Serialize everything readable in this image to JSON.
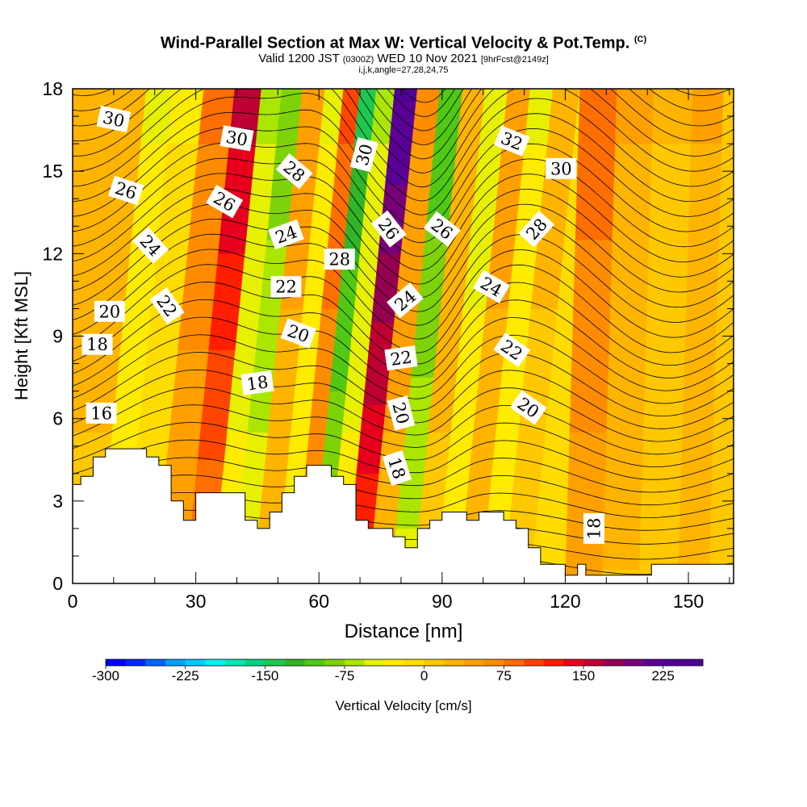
{
  "header": {
    "title": "Wind-Parallel Section at Max W: Vertical Velocity & Pot.Temp.",
    "title_mark": "(C)",
    "valid_prefix": "Valid 1200 JST",
    "valid_utc": "(0300Z)",
    "valid_date": "WED 10 Nov 2021",
    "forecast_info": "[9hrFcst@2149z]",
    "indices": "i,j,k,angle=27,28,24,75"
  },
  "chart_data": {
    "type": "heatmap",
    "xlabel": "Distance [nm]",
    "ylabel": "Height [Kft MSL]",
    "xlim": [
      0,
      161
    ],
    "ylim": [
      0,
      18
    ],
    "xticks": [
      "0",
      "30",
      "60",
      "90",
      "120",
      "150"
    ],
    "yticks": [
      "0",
      "3",
      "6",
      "9",
      "12",
      "15",
      "18"
    ],
    "colorbar": {
      "label": "Vertical Velocity [cm/s]",
      "min": -300,
      "max": 262.5,
      "step": 18.75,
      "tick_labels": [
        "-300",
        "-225",
        "-150",
        "-75",
        "0",
        "75",
        "150",
        "225"
      ],
      "colors": [
        "#0000ff",
        "#0028ff",
        "#0064ff",
        "#00a0ff",
        "#00c8ff",
        "#00f0f0",
        "#00e6b4",
        "#00d282",
        "#1ec850",
        "#32b428",
        "#50c814",
        "#7ed20a",
        "#aae600",
        "#e6f000",
        "#ffeb00",
        "#ffdc00",
        "#ffc800",
        "#ffb400",
        "#ffa000",
        "#ff8c00",
        "#ff6e00",
        "#ff4600",
        "#ff1e00",
        "#e6001e",
        "#be0032",
        "#960050",
        "#780078",
        "#5a0096",
        "#500096",
        "#500096"
      ]
    },
    "velocity_bands": [
      {
        "x": 3,
        "w": 30
      },
      {
        "x": 9,
        "w": -40
      },
      {
        "x": 16,
        "w": -20
      },
      {
        "x": 24,
        "w": 80
      },
      {
        "x": 31,
        "w": 160
      },
      {
        "x": 37,
        "w": -60
      },
      {
        "x": 41,
        "w": -90
      },
      {
        "x": 47,
        "w": 50
      },
      {
        "x": 52,
        "w": -40
      },
      {
        "x": 56,
        "w": 100
      },
      {
        "x": 60,
        "w": -140
      },
      {
        "x": 64,
        "w": -60
      },
      {
        "x": 69,
        "w": 230
      },
      {
        "x": 75,
        "w": 60
      },
      {
        "x": 80,
        "w": -110
      },
      {
        "x": 86,
        "w": 30
      },
      {
        "x": 91,
        "w": -50
      },
      {
        "x": 97,
        "w": 50
      },
      {
        "x": 102,
        "w": -40
      },
      {
        "x": 108,
        "w": 25
      },
      {
        "x": 115,
        "w": -20
      },
      {
        "x": 125,
        "w": 90
      },
      {
        "x": 133,
        "w": 40
      },
      {
        "x": 143,
        "w": 20
      },
      {
        "x": 152,
        "w": 40
      },
      {
        "x": 158,
        "w": 10
      }
    ],
    "terrain": [
      [
        0,
        3.6
      ],
      [
        2,
        3.6
      ],
      [
        2,
        3.9
      ],
      [
        5,
        3.9
      ],
      [
        5,
        4.6
      ],
      [
        8,
        4.6
      ],
      [
        8,
        4.9
      ],
      [
        18,
        4.9
      ],
      [
        18,
        4.6
      ],
      [
        21,
        4.6
      ],
      [
        21,
        4.3
      ],
      [
        24,
        4.3
      ],
      [
        24,
        3.0
      ],
      [
        27,
        3.0
      ],
      [
        27,
        2.3
      ],
      [
        30,
        2.3
      ],
      [
        30,
        3.3
      ],
      [
        42,
        3.3
      ],
      [
        42,
        2.3
      ],
      [
        45,
        2.3
      ],
      [
        45,
        2.0
      ],
      [
        48,
        2.0
      ],
      [
        48,
        2.6
      ],
      [
        51,
        2.6
      ],
      [
        51,
        3.3
      ],
      [
        54,
        3.3
      ],
      [
        54,
        3.9
      ],
      [
        57,
        3.9
      ],
      [
        57,
        4.3
      ],
      [
        63,
        4.3
      ],
      [
        63,
        3.9
      ],
      [
        66,
        3.9
      ],
      [
        66,
        3.6
      ],
      [
        69,
        3.6
      ],
      [
        69,
        2.3
      ],
      [
        72,
        2.3
      ],
      [
        72,
        2.0
      ],
      [
        78,
        2.0
      ],
      [
        78,
        1.7
      ],
      [
        81,
        1.7
      ],
      [
        81,
        1.3
      ],
      [
        84,
        1.3
      ],
      [
        84,
        2.0
      ],
      [
        87,
        2.0
      ],
      [
        87,
        2.3
      ],
      [
        90,
        2.3
      ],
      [
        90,
        2.6
      ],
      [
        96,
        2.6
      ],
      [
        96,
        2.3
      ],
      [
        99,
        2.3
      ],
      [
        99,
        2.6
      ],
      [
        105,
        2.6
      ],
      [
        105,
        2.3
      ],
      [
        108,
        2.3
      ],
      [
        108,
        2.0
      ],
      [
        111,
        2.0
      ],
      [
        111,
        1.3
      ],
      [
        114,
        1.3
      ],
      [
        114,
        0.7
      ],
      [
        120,
        0.7
      ],
      [
        120,
        0.3
      ],
      [
        123,
        0.3
      ],
      [
        123,
        0.7
      ],
      [
        125,
        0.7
      ],
      [
        125,
        0.3
      ],
      [
        141,
        0.3
      ],
      [
        141,
        0.7
      ],
      [
        161,
        0.7
      ]
    ],
    "isentropes": [
      {
        "label": "16",
        "labels": [
          [
            7,
            6.2,
            0
          ]
        ]
      },
      {
        "label": "18",
        "labels": [
          [
            6,
            8.7,
            0
          ],
          [
            45,
            7.3,
            -8
          ],
          [
            79,
            4.2,
            72
          ],
          [
            127,
            2.0,
            -90
          ]
        ]
      },
      {
        "label": "20",
        "labels": [
          [
            9,
            9.9,
            0
          ],
          [
            55,
            9.1,
            20
          ],
          [
            80,
            6.2,
            75
          ],
          [
            111,
            6.4,
            35
          ]
        ]
      },
      {
        "label": "22",
        "labels": [
          [
            23,
            10.1,
            55
          ],
          [
            52,
            10.8,
            0
          ],
          [
            80,
            8.2,
            -8
          ],
          [
            107,
            8.5,
            35
          ]
        ]
      },
      {
        "label": "24",
        "labels": [
          [
            19,
            12.3,
            48
          ],
          [
            52,
            12.7,
            -20
          ],
          [
            81,
            10.3,
            -40
          ],
          [
            102,
            10.8,
            30
          ]
        ]
      },
      {
        "label": "26",
        "labels": [
          [
            13,
            14.3,
            18
          ],
          [
            37,
            13.9,
            30
          ],
          [
            77,
            12.9,
            52
          ],
          [
            90,
            12.9,
            38
          ]
        ]
      },
      {
        "label": "28",
        "labels": [
          [
            54,
            15.0,
            40
          ],
          [
            65,
            11.8,
            0
          ],
          [
            113,
            12.9,
            -48
          ]
        ]
      },
      {
        "label": "30",
        "labels": [
          [
            10,
            16.9,
            12
          ],
          [
            40,
            16.2,
            10
          ],
          [
            71,
            15.6,
            -75
          ],
          [
            119,
            15.1,
            0
          ]
        ]
      },
      {
        "label": "32",
        "labels": [
          [
            107,
            16.1,
            22
          ]
        ]
      }
    ]
  }
}
